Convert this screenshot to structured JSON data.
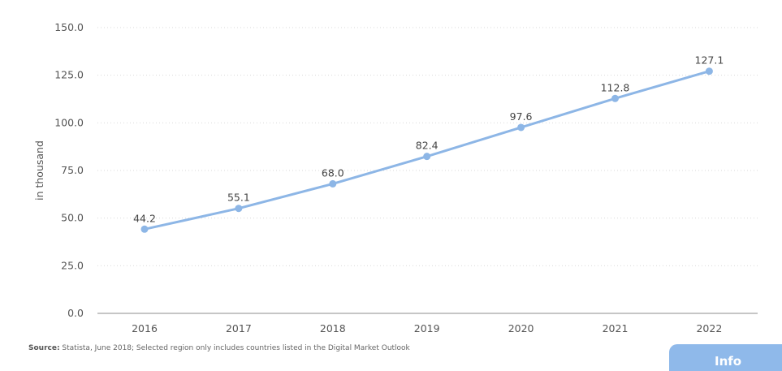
{
  "chart_data": {
    "type": "line",
    "title": "",
    "xlabel": "",
    "ylabel": "in thousand",
    "categories": [
      "2016",
      "2017",
      "2018",
      "2019",
      "2020",
      "2021",
      "2022"
    ],
    "series": [
      {
        "values": [
          44.2,
          55.1,
          68.0,
          82.4,
          97.6,
          112.8,
          127.1
        ],
        "labels": [
          "44.2",
          "55.1",
          "68.0",
          "82.4",
          "97.6",
          "112.8",
          "127.1"
        ]
      }
    ],
    "ylim": [
      0,
      150
    ],
    "yticks": [
      0,
      25,
      50,
      75,
      100,
      125,
      150
    ],
    "ytick_labels": [
      "0.0",
      "25.0",
      "50.0",
      "75.0",
      "100.0",
      "125.0",
      "150.0"
    ],
    "grid": true,
    "legend": "none",
    "colors": {
      "line": "#8db6e6",
      "point": "#8db6e6"
    }
  },
  "footer": {
    "source_label": "Source:",
    "source_text": " Statista, June 2018; Selected region only includes countries listed in the Digital Market Outlook"
  },
  "info_button": {
    "label": "Info"
  }
}
